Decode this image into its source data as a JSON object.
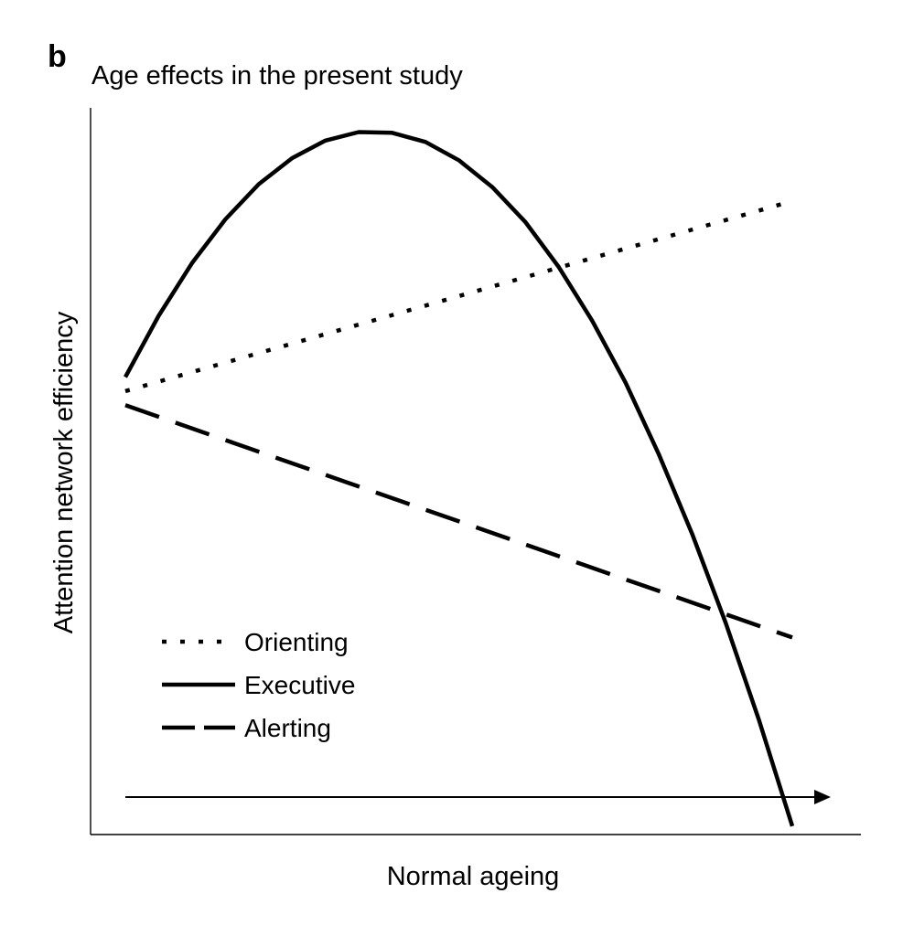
{
  "panel_label": "b",
  "chart_data": {
    "type": "line",
    "title": "Age effects in the present study",
    "xlabel": "Normal ageing",
    "ylabel": "Attention network efficiency",
    "x_ticks": [],
    "y_ticks": [],
    "xlim": [
      0,
      1
    ],
    "ylim": [
      0,
      1
    ],
    "grid": false,
    "legend_position": "bottom-left",
    "series": [
      {
        "name": "Orienting",
        "style": "dotted",
        "color": "#000000",
        "x": [
          0,
          1
        ],
        "y": [
          0.63,
          0.9
        ]
      },
      {
        "name": "Executive",
        "style": "solid",
        "color": "#000000",
        "x": [
          0,
          0.05,
          0.1,
          0.15,
          0.2,
          0.25,
          0.3,
          0.35,
          0.4,
          0.45,
          0.5,
          0.55,
          0.6,
          0.65,
          0.7,
          0.75,
          0.8,
          0.85,
          0.9,
          0.95,
          1
        ],
        "y": [
          0.65,
          0.737,
          0.812,
          0.874,
          0.924,
          0.961,
          0.986,
          0.998,
          0.997,
          0.984,
          0.958,
          0.92,
          0.87,
          0.806,
          0.73,
          0.642,
          0.54,
          0.427,
          0.301,
          0.163,
          0.012
        ]
      },
      {
        "name": "Alerting",
        "style": "dashed",
        "color": "#000000",
        "x": [
          0,
          1
        ],
        "y": [
          0.61,
          0.28
        ]
      }
    ]
  }
}
